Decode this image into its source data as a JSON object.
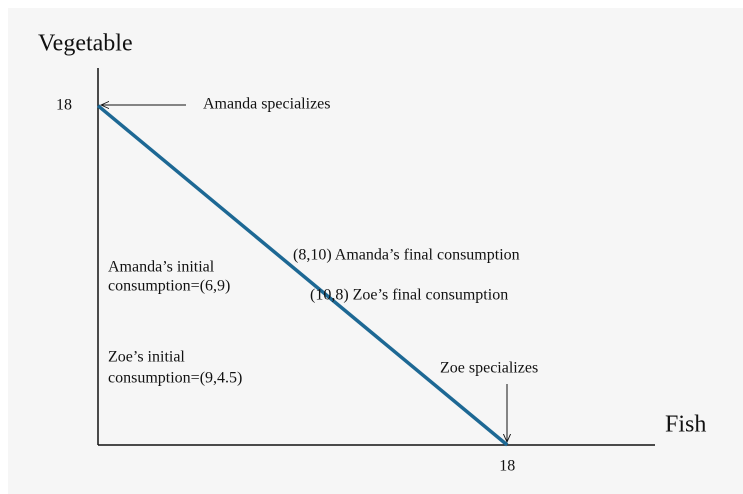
{
  "chart_data": {
    "type": "line",
    "ylabel": "Vegetable",
    "xlabel": "Fish",
    "x": [
      0,
      18
    ],
    "series": [
      {
        "color": "#1d6894",
        "values": [
          18,
          0
        ]
      }
    ],
    "xlim": [
      0,
      24.5
    ],
    "ylim": [
      0,
      20
    ],
    "xticks": [
      18
    ],
    "yticks": [
      18
    ],
    "annotations": [
      "Amanda specializes",
      "(8,10) Amanda’s final consumption",
      "Amanda’s initial",
      "consumption=(6,9)",
      "(10,8) Zoe’s final consumption",
      "Zoe’s initial",
      "consumption=(9,4.5)",
      "Zoe specializes"
    ]
  }
}
